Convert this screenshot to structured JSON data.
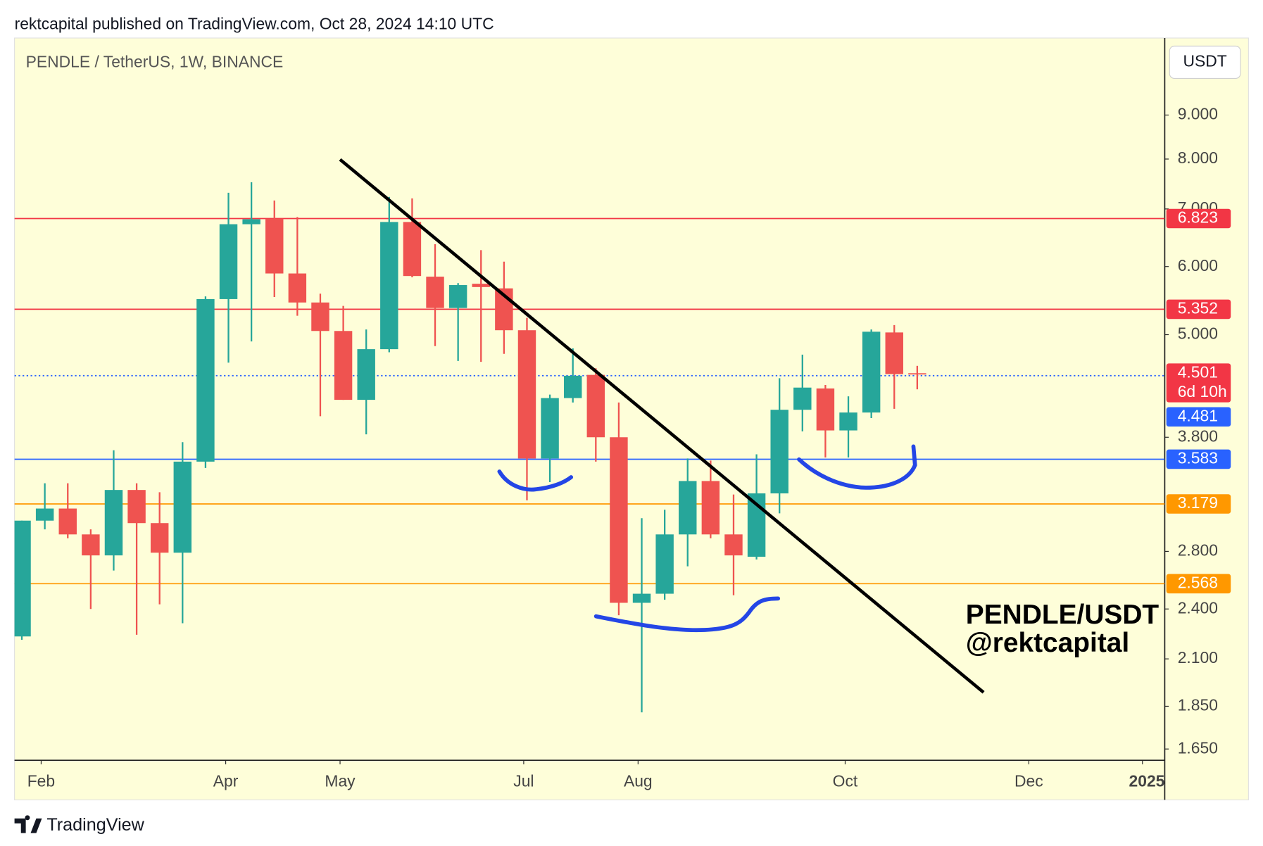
{
  "header": "rektcapital published on TradingView.com, Oct 28, 2024 14:10 UTC",
  "footer": "TradingView",
  "chart_data": {
    "type": "candlestick",
    "title": "PENDLE / TetherUS, 1W, BINANCE",
    "y_unit": "USDT",
    "annotation": [
      "PENDLE/USDT",
      "@rektcapital"
    ],
    "up_color": "#26a69a",
    "down_color": "#ef5350",
    "log_scale": true,
    "x": [
      0,
      1,
      2,
      3,
      4,
      5,
      6,
      7,
      8,
      9,
      10,
      11,
      12,
      13,
      14,
      15,
      16,
      17,
      18,
      19,
      20,
      21,
      22,
      23,
      24,
      25,
      26,
      27,
      28,
      29,
      30,
      31,
      32,
      33,
      34,
      35,
      36,
      37,
      38,
      39
    ],
    "open": [
      2.23,
      3.04,
      3.14,
      2.93,
      2.77,
      3.3,
      3.02,
      2.79,
      3.56,
      5.5,
      6.72,
      6.82,
      5.89,
      5.45,
      5.05,
      4.2,
      4.81,
      6.76,
      5.84,
      5.37,
      5.73,
      5.66,
      5.06,
      3.59,
      4.22,
      4.49,
      3.8,
      2.44,
      2.5,
      2.93,
      3.38,
      2.93,
      2.76,
      3.27,
      4.09,
      4.33,
      3.87,
      4.06,
      5.03,
      4.51
    ],
    "high": [
      3.04,
      3.36,
      3.36,
      2.97,
      3.67,
      3.36,
      3.28,
      3.75,
      5.54,
      7.31,
      7.52,
      7.16,
      6.85,
      5.58,
      5.4,
      5.07,
      7.23,
      7.2,
      6.37,
      5.74,
      6.27,
      6.08,
      5.23,
      4.26,
      4.82,
      4.57,
      4.17,
      3.06,
      3.13,
      3.59,
      3.57,
      3.26,
      3.63,
      4.45,
      4.74,
      4.37,
      4.24,
      5.07,
      5.13,
      4.6
    ],
    "low": [
      2.21,
      2.97,
      2.9,
      2.4,
      2.66,
      2.24,
      2.43,
      2.31,
      3.5,
      4.64,
      4.91,
      5.53,
      5.26,
      4.02,
      4.2,
      3.83,
      4.77,
      5.83,
      4.85,
      4.66,
      4.65,
      4.75,
      3.21,
      3.37,
      4.17,
      3.56,
      2.36,
      1.82,
      2.46,
      2.69,
      2.9,
      2.49,
      2.74,
      3.1,
      3.86,
      3.6,
      3.6,
      4.0,
      4.1,
      4.32
    ],
    "close": [
      3.04,
      3.14,
      2.93,
      2.77,
      3.3,
      3.02,
      2.79,
      3.56,
      5.5,
      6.72,
      6.81,
      5.89,
      5.45,
      5.05,
      4.2,
      4.81,
      6.76,
      5.85,
      5.37,
      5.71,
      5.68,
      5.06,
      3.59,
      4.22,
      4.48,
      3.8,
      2.44,
      2.5,
      2.93,
      3.38,
      2.93,
      2.77,
      3.27,
      4.09,
      4.34,
      3.87,
      4.06,
      5.04,
      4.5,
      4.501
    ],
    "xlim": [
      -0.32,
      49.78
    ],
    "xticks": [
      {
        "value": 0.84,
        "label": "Feb"
      },
      {
        "value": 8.88,
        "label": "Apr"
      },
      {
        "value": 13.86,
        "label": "May"
      },
      {
        "value": 21.86,
        "label": "Jul"
      },
      {
        "value": 26.84,
        "label": "Aug"
      },
      {
        "value": 35.86,
        "label": "Oct"
      },
      {
        "value": 43.86,
        "label": "Dec"
      },
      {
        "value": 48.81,
        "label": "2025"
      }
    ],
    "ylim": [
      1.601,
      11.06
    ],
    "yticks": [
      {
        "value": 9,
        "label": "9.000"
      },
      {
        "value": 8,
        "label": "8.000"
      },
      {
        "value": 7,
        "label": "7.000"
      },
      {
        "value": 6,
        "label": "6.000"
      },
      {
        "value": 5,
        "label": "5.000"
      },
      {
        "value": 3.8,
        "label": "3.800"
      },
      {
        "value": 2.8,
        "label": "2.800"
      },
      {
        "value": 2.4,
        "label": "2.400"
      },
      {
        "value": 2.1,
        "label": "2.100"
      },
      {
        "value": 1.85,
        "label": "1.850"
      },
      {
        "value": 1.65,
        "label": "1.650"
      }
    ],
    "levels": [
      {
        "value": 6.823,
        "color": "#f23645"
      },
      {
        "value": 5.352,
        "color": "#f23645"
      },
      {
        "value": 4.481,
        "color": "#2962ff",
        "dashed": true
      },
      {
        "value": 3.583,
        "color": "#2962ff"
      },
      {
        "value": 3.179,
        "color": "#ff9800"
      },
      {
        "value": 2.568,
        "color": "#ff9800"
      }
    ],
    "last_price": {
      "value": 4.501,
      "color": "#f23645",
      "countdown": "6d 10h"
    },
    "trendline": {
      "x": [
        13.86,
        41.89
      ],
      "values": [
        7.99,
        1.92
      ],
      "color": "#000000"
    }
  }
}
